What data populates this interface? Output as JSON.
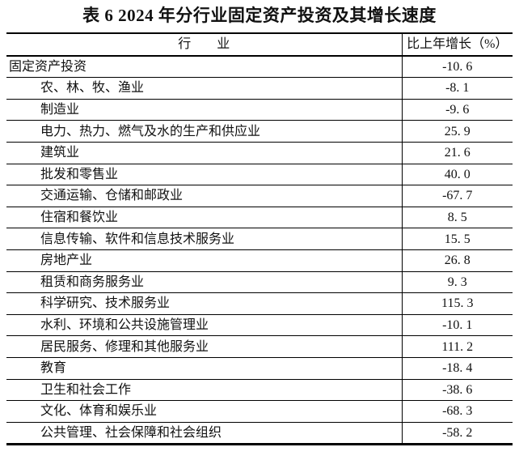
{
  "title": "表 6  2024 年分行业固定资产投资及其增长速度",
  "table": {
    "headers": [
      "行　　业",
      "比上年增长（%）"
    ],
    "rows": [
      {
        "industry": "固定资产投资",
        "growth": "-10. 6",
        "indent": false
      },
      {
        "industry": "农、林、牧、渔业",
        "growth": "-8. 1",
        "indent": true
      },
      {
        "industry": "制造业",
        "growth": "-9. 6",
        "indent": true
      },
      {
        "industry": "电力、热力、燃气及水的生产和供应业",
        "growth": "25. 9",
        "indent": true
      },
      {
        "industry": "建筑业",
        "growth": "21. 6",
        "indent": true
      },
      {
        "industry": "批发和零售业",
        "growth": "40. 0",
        "indent": true
      },
      {
        "industry": "交通运输、仓储和邮政业",
        "growth": "-67. 7",
        "indent": true
      },
      {
        "industry": "住宿和餐饮业",
        "growth": "8. 5",
        "indent": true
      },
      {
        "industry": "信息传输、软件和信息技术服务业",
        "growth": "15. 5",
        "indent": true
      },
      {
        "industry": "房地产业",
        "growth": "26. 8",
        "indent": true
      },
      {
        "industry": "租赁和商务服务业",
        "growth": "9. 3",
        "indent": true
      },
      {
        "industry": "科学研究、技术服务业",
        "growth": "115. 3",
        "indent": true
      },
      {
        "industry": "水利、环境和公共设施管理业",
        "growth": "-10. 1",
        "indent": true
      },
      {
        "industry": "居民服务、修理和其他服务业",
        "growth": "111. 2",
        "indent": true
      },
      {
        "industry": "教育",
        "growth": "-18. 4",
        "indent": true
      },
      {
        "industry": "卫生和社会工作",
        "growth": "-38. 6",
        "indent": true
      },
      {
        "industry": "文化、体育和娱乐业",
        "growth": "-68. 3",
        "indent": true
      },
      {
        "industry": "公共管理、社会保障和社会组织",
        "growth": "-58. 2",
        "indent": true
      }
    ]
  }
}
